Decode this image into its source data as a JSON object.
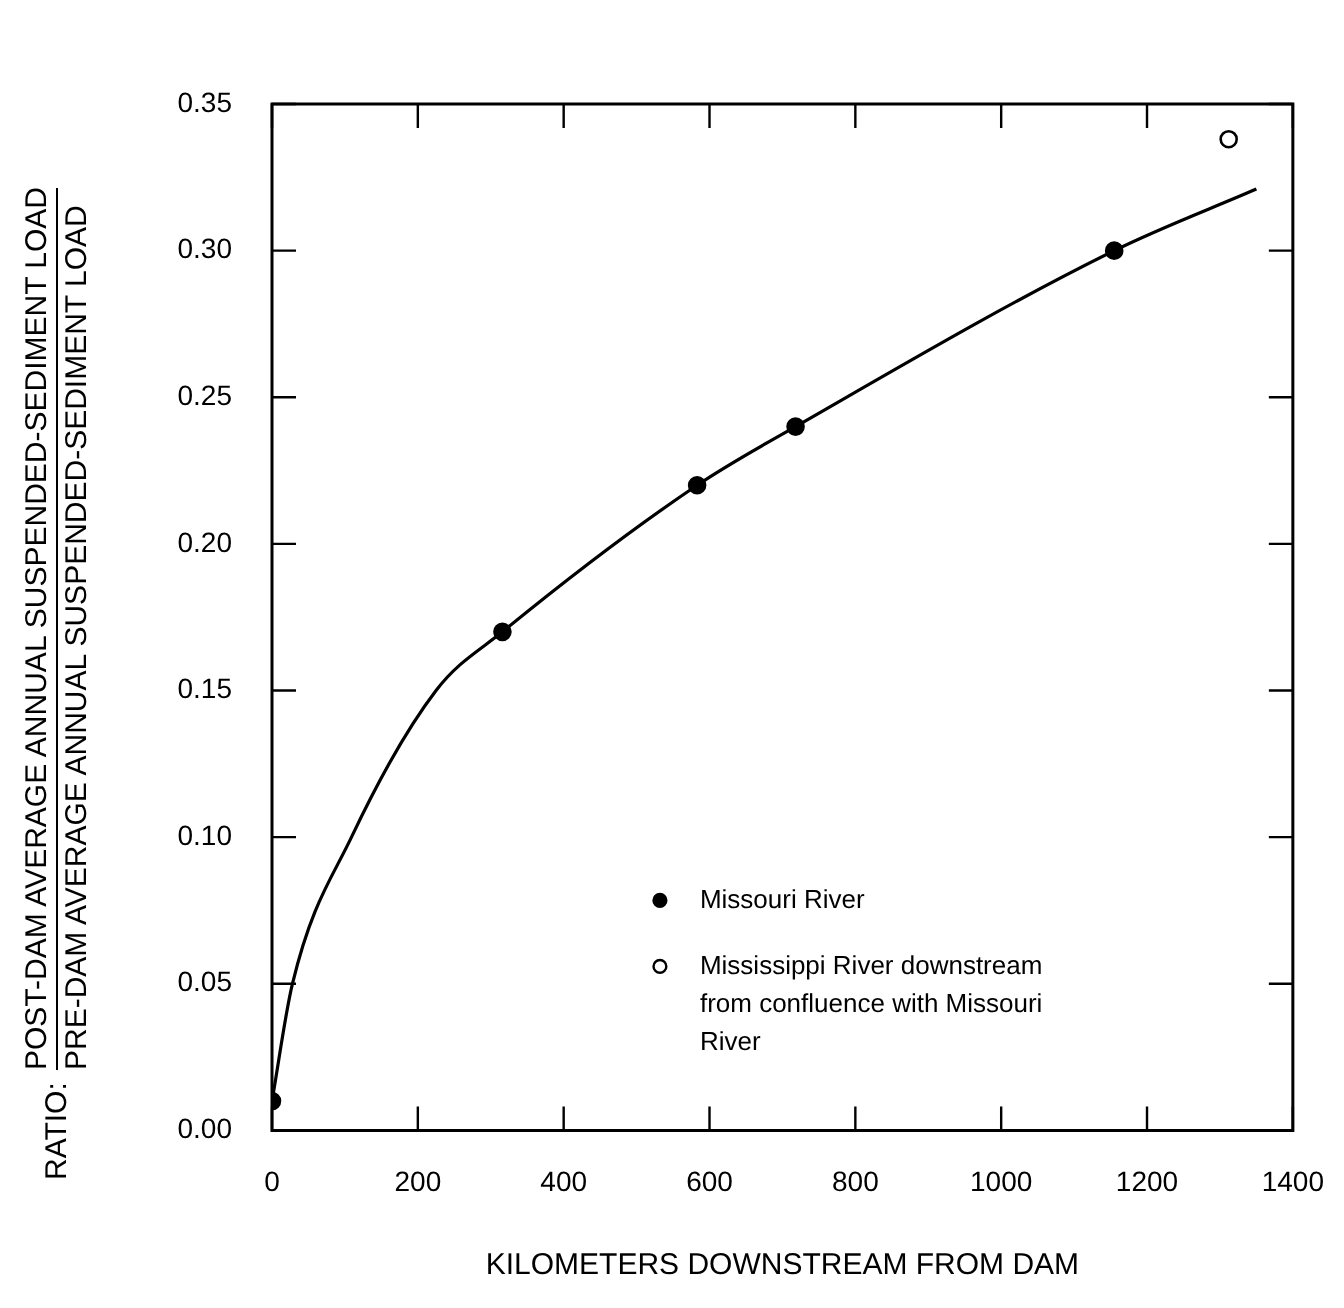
{
  "chart_data": {
    "type": "scatter",
    "xlabel": "KILOMETERS DOWNSTREAM FROM DAM",
    "ylabel": "RATIO: POST-DAM AVERAGE ANNUAL SUSPENDED-SEDIMENT LOAD PRE-DAM AVERAGE ANNUAL SUSPENDED-SEDIMENT LOAD",
    "xlim": [
      0,
      1400
    ],
    "xticks": [
      0,
      200,
      400,
      600,
      800,
      1000,
      1200,
      1400
    ],
    "ylim": [
      0,
      0.35
    ],
    "yticks": [
      {
        "value": 0,
        "label": "0.00"
      },
      {
        "value": 0.05,
        "label": "0.05"
      },
      {
        "value": 0.1,
        "label": "0.10"
      },
      {
        "value": 0.15,
        "label": "0.15"
      },
      {
        "value": 0.2,
        "label": "0.20"
      },
      {
        "value": 0.25,
        "label": "0.25"
      },
      {
        "value": 0.3,
        "label": "0.30"
      },
      {
        "value": 0.35,
        "label": "0.35"
      }
    ],
    "grid": false,
    "legend": "bottom right",
    "marker": "circle",
    "series": [
      {
        "type": "line",
        "color": "#000000",
        "marker": "none",
        "x": [
          0,
          28,
          109,
          225,
          316,
          583,
          718,
          1155,
          1350
        ],
        "values": [
          0.01,
          0.05,
          0.1,
          0.15,
          0.17,
          0.22,
          0.24,
          0.3,
          0.321
        ]
      },
      {
        "name": "Missouri River",
        "color": "#000000",
        "x": [
          0,
          316,
          583,
          718,
          1155
        ],
        "values": [
          0.01,
          0.17,
          0.22,
          0.24,
          0.3
        ]
      },
      {
        "name": "Mississippi River downstream from confluence with Missouri River",
        "color": "#ffffff",
        "x": [
          1312
        ],
        "values": [
          0.338
        ]
      }
    ]
  }
}
